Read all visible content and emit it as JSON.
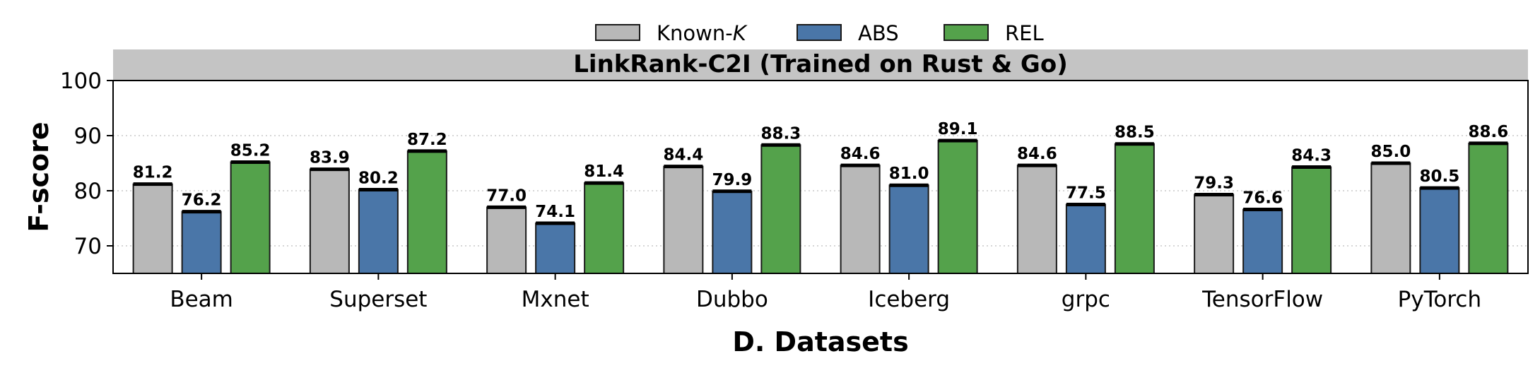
{
  "chart_data": {
    "type": "bar",
    "title": "LinkRank-C2I (Trained on Rust & Go)",
    "xlabel": "D. Datasets",
    "ylabel": "F-score",
    "ylim": [
      65,
      100
    ],
    "yticks": [
      70,
      80,
      90,
      100
    ],
    "grid": "horizontal dotted",
    "legend_position": "top-center",
    "categories": [
      "Beam",
      "Superset",
      "Mxnet",
      "Dubbo",
      "Iceberg",
      "grpc",
      "TensorFlow",
      "PyTorch"
    ],
    "series": [
      {
        "name": "Known-K",
        "name_base": "Known-",
        "name_italic": "K",
        "color": "#b8b8b8",
        "values": [
          81.2,
          83.9,
          77.0,
          84.4,
          84.6,
          84.6,
          79.3,
          85.0
        ],
        "labels": [
          "81.2",
          "83.9",
          "77.0",
          "84.4",
          "84.6",
          "84.6",
          "79.3",
          "85.0"
        ]
      },
      {
        "name": "ABS",
        "color": "#4a76a8",
        "values": [
          76.2,
          80.2,
          74.1,
          79.9,
          81.0,
          77.5,
          76.6,
          80.5
        ],
        "labels": [
          "76.2",
          "80.2",
          "74.1",
          "79.9",
          "81.0",
          "77.5",
          "76.6",
          "80.5"
        ]
      },
      {
        "name": "REL",
        "color": "#54a24b",
        "values": [
          85.2,
          87.2,
          81.4,
          88.3,
          89.1,
          88.5,
          84.3,
          88.6
        ],
        "labels": [
          "85.2",
          "87.2",
          "81.4",
          "88.3",
          "89.1",
          "88.5",
          "84.3",
          "88.6"
        ]
      }
    ]
  }
}
